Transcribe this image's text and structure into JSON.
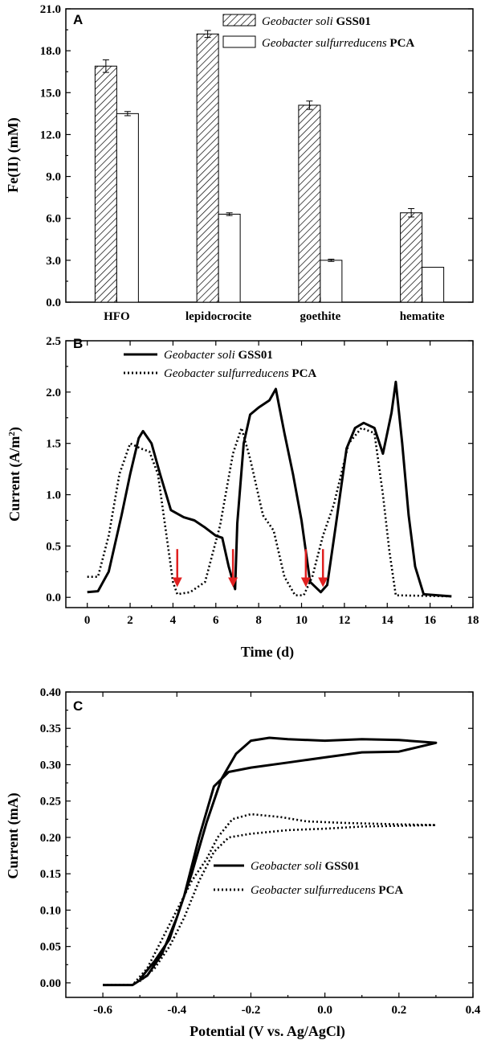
{
  "chart_data": [
    {
      "panel": "A",
      "type": "bar",
      "ylabel": "Fe(II) (mM)",
      "ylim": [
        0,
        21
      ],
      "yticks": [
        "0.0",
        "3.0",
        "6.0",
        "9.0",
        "12.0",
        "15.0",
        "18.0",
        "21.0"
      ],
      "categories": [
        "HFO",
        "lepidocrocite",
        "goethite",
        "hematite"
      ],
      "series": [
        {
          "species": "Geobacter soli",
          "strain": "GSS01",
          "pattern": "hatched",
          "values": [
            16.9,
            19.2,
            14.1,
            6.4
          ],
          "errors": [
            0.45,
            0.25,
            0.3,
            0.3
          ]
        },
        {
          "species": "Geobacter sulfurreducens",
          "strain": "PCA",
          "pattern": "open",
          "values": [
            13.5,
            6.3,
            3.0,
            2.5
          ],
          "errors": [
            0.15,
            0.1,
            0.08,
            0.0
          ]
        }
      ],
      "legend_position": "top-right"
    },
    {
      "panel": "B",
      "type": "line",
      "xlabel": "Time (d)",
      "ylabel": "Current (A/m²)",
      "xlim": [
        -1,
        18
      ],
      "ylim": [
        -0.1,
        2.5
      ],
      "xticks": [
        "0",
        "2",
        "4",
        "6",
        "8",
        "10",
        "12",
        "14",
        "16",
        "18"
      ],
      "yticks": [
        "0.0",
        "0.5",
        "1.0",
        "1.5",
        "2.0",
        "2.5"
      ],
      "series": [
        {
          "species": "Geobacter soli",
          "strain": "GSS01",
          "style": "solid",
          "points": [
            [
              0,
              0.05
            ],
            [
              0.5,
              0.06
            ],
            [
              1.0,
              0.25
            ],
            [
              1.6,
              0.8
            ],
            [
              2.0,
              1.2
            ],
            [
              2.4,
              1.55
            ],
            [
              2.6,
              1.62
            ],
            [
              3.0,
              1.5
            ],
            [
              3.4,
              1.2
            ],
            [
              3.9,
              0.85
            ],
            [
              4.5,
              0.78
            ],
            [
              5.0,
              0.75
            ],
            [
              5.5,
              0.68
            ],
            [
              6.0,
              0.6
            ],
            [
              6.3,
              0.58
            ],
            [
              6.6,
              0.3
            ],
            [
              6.9,
              0.08
            ],
            [
              7.0,
              0.72
            ],
            [
              7.3,
              1.5
            ],
            [
              7.6,
              1.78
            ],
            [
              8.0,
              1.85
            ],
            [
              8.5,
              1.92
            ],
            [
              8.8,
              2.03
            ],
            [
              9.2,
              1.6
            ],
            [
              9.6,
              1.2
            ],
            [
              10.0,
              0.75
            ],
            [
              10.4,
              0.15
            ],
            [
              10.9,
              0.05
            ],
            [
              11.2,
              0.12
            ],
            [
              11.6,
              0.7
            ],
            [
              12.1,
              1.45
            ],
            [
              12.5,
              1.65
            ],
            [
              12.9,
              1.7
            ],
            [
              13.4,
              1.65
            ],
            [
              13.8,
              1.4
            ],
            [
              14.2,
              1.8
            ],
            [
              14.4,
              2.1
            ],
            [
              14.7,
              1.5
            ],
            [
              15.0,
              0.8
            ],
            [
              15.3,
              0.3
            ],
            [
              15.7,
              0.03
            ],
            [
              17.0,
              0.01
            ]
          ]
        },
        {
          "species": "Geobacter sulfurreducens",
          "strain": "PCA",
          "style": "dotted",
          "points": [
            [
              0,
              0.2
            ],
            [
              0.5,
              0.2
            ],
            [
              1.0,
              0.6
            ],
            [
              1.5,
              1.2
            ],
            [
              2.0,
              1.5
            ],
            [
              2.5,
              1.45
            ],
            [
              2.9,
              1.42
            ],
            [
              3.3,
              1.2
            ],
            [
              3.7,
              0.6
            ],
            [
              4.0,
              0.15
            ],
            [
              4.2,
              0.03
            ],
            [
              4.8,
              0.05
            ],
            [
              5.5,
              0.15
            ],
            [
              6.2,
              0.7
            ],
            [
              6.8,
              1.4
            ],
            [
              7.2,
              1.65
            ],
            [
              7.6,
              1.35
            ],
            [
              8.2,
              0.8
            ],
            [
              8.7,
              0.65
            ],
            [
              9.2,
              0.2
            ],
            [
              9.7,
              0.02
            ],
            [
              10.1,
              0.02
            ],
            [
              10.5,
              0.2
            ],
            [
              11.0,
              0.6
            ],
            [
              11.5,
              0.9
            ],
            [
              12.2,
              1.5
            ],
            [
              12.8,
              1.65
            ],
            [
              13.4,
              1.6
            ],
            [
              13.8,
              1.0
            ],
            [
              14.1,
              0.45
            ],
            [
              14.4,
              0.02
            ],
            [
              17.0,
              0.01
            ]
          ]
        }
      ],
      "arrows_at_x": [
        4.2,
        6.8,
        10.2,
        11.0
      ],
      "arrow_color": "#e02020",
      "legend_position": "top-left"
    },
    {
      "panel": "C",
      "type": "line",
      "xlabel": "Potential (V vs. Ag/AgCl)",
      "ylabel": "Current (mA)",
      "xlim": [
        -0.7,
        0.4
      ],
      "ylim": [
        -0.02,
        0.4
      ],
      "xticks": [
        "-0.6",
        "-0.4",
        "-0.2",
        "0.0",
        "0.2",
        "0.4"
      ],
      "yticks": [
        "0.00",
        "0.05",
        "0.10",
        "0.15",
        "0.20",
        "0.25",
        "0.30",
        "0.35",
        "0.40"
      ],
      "series": [
        {
          "species": "Geobacter soli",
          "strain": "GSS01",
          "style": "solid",
          "points": [
            [
              -0.6,
              -0.003
            ],
            [
              -0.52,
              -0.003
            ],
            [
              -0.48,
              0.01
            ],
            [
              -0.44,
              0.04
            ],
            [
              -0.4,
              0.09
            ],
            [
              -0.36,
              0.15
            ],
            [
              -0.32,
              0.22
            ],
            [
              -0.28,
              0.28
            ],
            [
              -0.24,
              0.315
            ],
            [
              -0.2,
              0.333
            ],
            [
              -0.15,
              0.337
            ],
            [
              -0.1,
              0.335
            ],
            [
              0.0,
              0.333
            ],
            [
              0.1,
              0.335
            ],
            [
              0.2,
              0.334
            ],
            [
              0.3,
              0.33
            ],
            [
              0.2,
              0.318
            ],
            [
              0.1,
              0.317
            ],
            [
              0.0,
              0.31
            ],
            [
              -0.1,
              0.303
            ],
            [
              -0.2,
              0.296
            ],
            [
              -0.26,
              0.29
            ],
            [
              -0.3,
              0.27
            ],
            [
              -0.34,
              0.2
            ],
            [
              -0.38,
              0.12
            ],
            [
              -0.42,
              0.06
            ],
            [
              -0.46,
              0.03
            ],
            [
              -0.5,
              0.005
            ]
          ]
        },
        {
          "species": "Geobacter sulfurreducens",
          "strain": "PCA",
          "style": "dotted",
          "points": [
            [
              -0.6,
              -0.003
            ],
            [
              -0.52,
              -0.003
            ],
            [
              -0.48,
              0.02
            ],
            [
              -0.44,
              0.06
            ],
            [
              -0.4,
              0.1
            ],
            [
              -0.36,
              0.14
            ],
            [
              -0.32,
              0.17
            ],
            [
              -0.29,
              0.2
            ],
            [
              -0.25,
              0.225
            ],
            [
              -0.2,
              0.232
            ],
            [
              -0.12,
              0.228
            ],
            [
              -0.05,
              0.222
            ],
            [
              0.05,
              0.22
            ],
            [
              0.2,
              0.218
            ],
            [
              0.3,
              0.217
            ],
            [
              0.1,
              0.215
            ],
            [
              0.0,
              0.212
            ],
            [
              -0.1,
              0.21
            ],
            [
              -0.2,
              0.205
            ],
            [
              -0.26,
              0.2
            ],
            [
              -0.3,
              0.18
            ],
            [
              -0.34,
              0.14
            ],
            [
              -0.38,
              0.09
            ],
            [
              -0.42,
              0.05
            ],
            [
              -0.46,
              0.02
            ],
            [
              -0.5,
              0.002
            ]
          ]
        }
      ],
      "legend_position": "center-right"
    }
  ]
}
